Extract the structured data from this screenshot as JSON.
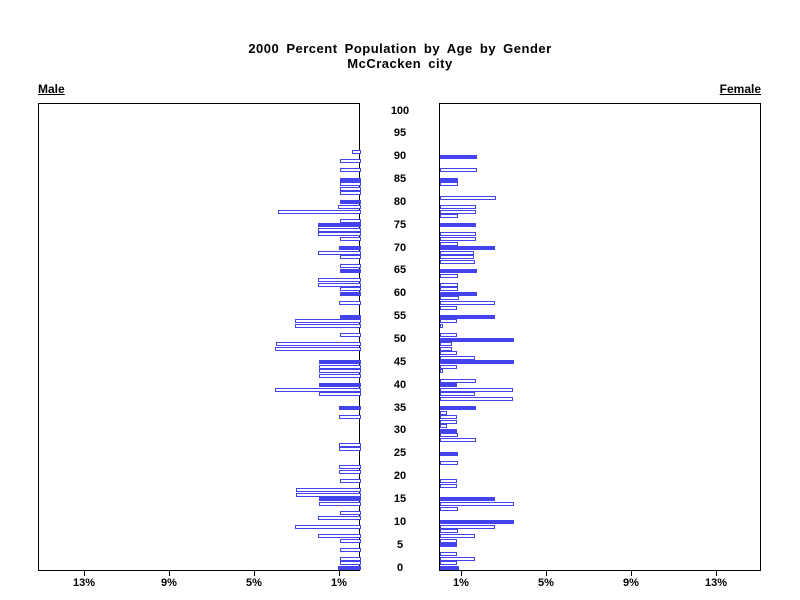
{
  "title": {
    "line1": "2000 Percent Population by Age by Gender",
    "line2": "McCracken city"
  },
  "panel_labels": {
    "male": "Male",
    "female": "Female"
  },
  "chart_data": {
    "type": "bar",
    "subtype": "population-pyramid",
    "title": "2000 Percent Population by Age by Gender",
    "subtitle": "McCracken city",
    "orientation": "horizontal",
    "unit": "percent of total population",
    "age_min": 0,
    "age_max": 91,
    "age_tick_step": 5,
    "age_tick_labels": [
      "0",
      "5",
      "10",
      "15",
      "20",
      "25",
      "30",
      "35",
      "40",
      "45",
      "50",
      "55",
      "60",
      "65",
      "70",
      "75",
      "80",
      "85",
      "90",
      "95",
      "100"
    ],
    "pct_tick_values": [
      1,
      5,
      9,
      13
    ],
    "pct_tick_labels": [
      "1%",
      "5%",
      "9%",
      "13%"
    ],
    "xlim": [
      0,
      15
    ],
    "grid": false,
    "legend": "none",
    "highlight_rule": "bars at ages divisible by 5 are drawn solid; other ages outlined",
    "colors": {
      "bar_blue": "#4444ee",
      "axis_black": "#000000",
      "background": "#ffffff"
    },
    "series": [
      {
        "name": "Male",
        "side": "left",
        "values_pct_by_age": [
          1.1,
          1.0,
          1.0,
          0,
          1.0,
          0,
          1.0,
          2.0,
          0,
          3.1,
          0,
          2.0,
          1.0,
          0,
          1.95,
          1.95,
          3.05,
          3.05,
          0,
          1.0,
          0,
          1.05,
          1.05,
          0,
          0,
          0,
          1.05,
          1.05,
          0,
          0,
          0,
          0,
          0,
          1.05,
          0,
          1.05,
          0,
          0,
          1.95,
          4.05,
          1.95,
          0,
          1.95,
          1.95,
          1.95,
          1.95,
          0,
          0,
          4.05,
          4.0,
          0,
          1.0,
          0,
          3.1,
          3.1,
          1.0,
          0,
          0,
          1.05,
          0,
          1.0,
          1.0,
          2.0,
          2.0,
          0,
          1.0,
          1.0,
          0,
          1.0,
          2.0,
          1.05,
          0,
          1.0,
          2.0,
          2.0,
          2.0,
          1.0,
          0,
          3.9,
          1.1,
          1.0,
          0,
          1.0,
          1.0,
          1.0,
          1.0,
          0,
          1.0,
          0,
          1.0,
          0,
          0.4
        ]
      },
      {
        "name": "Female",
        "side": "right",
        "values_pct_by_age": [
          0.9,
          0.82,
          1.63,
          0.82,
          0,
          0.82,
          0.82,
          1.63,
          0.85,
          2.56,
          3.49,
          0,
          0,
          0.85,
          3.46,
          2.6,
          0,
          0,
          0.82,
          0.82,
          0,
          0,
          0,
          0.85,
          0,
          0.85,
          0,
          0,
          1.71,
          0.85,
          0.78,
          0.35,
          0.78,
          0.78,
          0.34,
          1.68,
          0,
          3.44,
          1.63,
          3.44,
          0.78,
          1.68,
          0,
          0.12,
          0.8,
          3.47,
          1.63,
          0.8,
          0.58,
          0.58,
          3.47,
          0.8,
          0,
          0.12,
          0.8,
          2.57,
          0,
          0.8,
          2.6,
          0.9,
          1.75,
          0.86,
          0.86,
          0,
          0.85,
          1.72,
          0,
          1.65,
          1.6,
          1.6,
          2.6,
          0.85,
          1.7,
          1.7,
          0,
          1.68,
          0,
          0.85,
          1.7,
          1.7,
          0,
          2.64,
          0,
          0,
          0.86,
          0.85,
          0,
          1.72,
          0,
          0,
          1.75,
          0
        ]
      }
    ]
  }
}
